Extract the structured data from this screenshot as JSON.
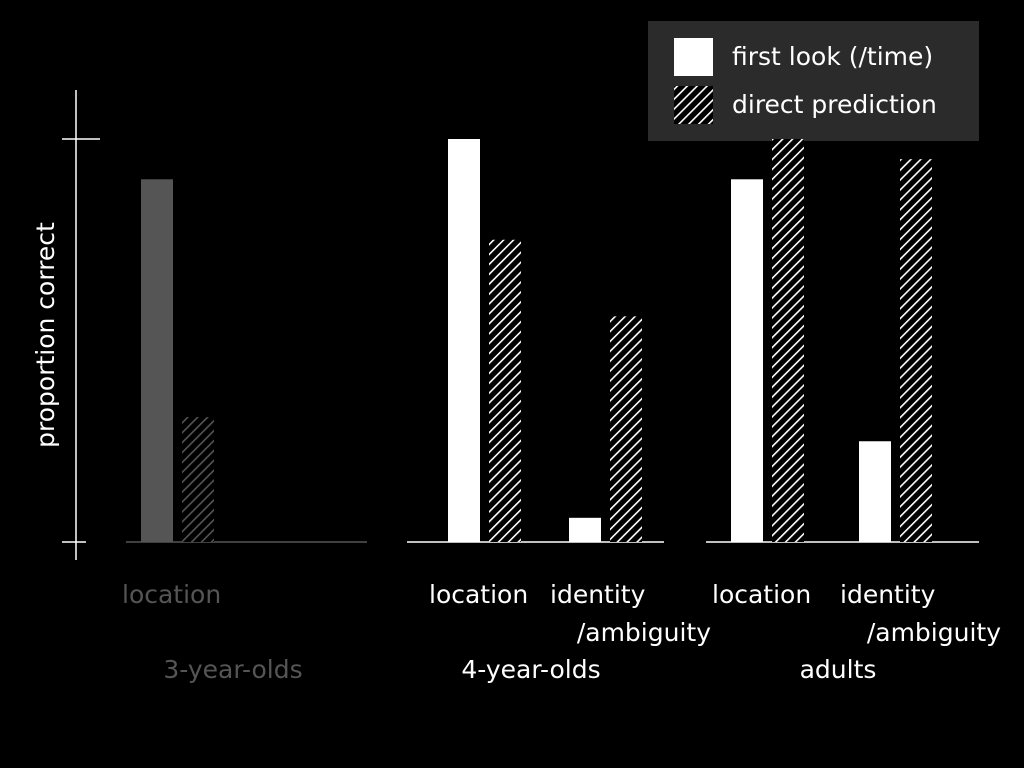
{
  "chart_data": {
    "type": "bar",
    "ylabel": "proportion correct",
    "ylim": [
      0,
      1
    ],
    "grid": false,
    "legend_position": "top-right",
    "colors": {
      "background": "#000000",
      "active": "#ffffff",
      "dimmed": "#555555",
      "legend_box": "#2b2b2b"
    },
    "series": [
      {
        "name": "first look (/time)",
        "pattern": "solid"
      },
      {
        "name": "direct prediction",
        "pattern": "hatched"
      }
    ],
    "groups": [
      {
        "label": "3-year-olds",
        "dimmed": true,
        "conditions": [
          {
            "label": "location",
            "label2": "",
            "values": [
              0.9,
              0.31
            ]
          }
        ]
      },
      {
        "label": "4-year-olds",
        "dimmed": false,
        "conditions": [
          {
            "label": "location",
            "label2": "",
            "values": [
              1.0,
              0.75
            ]
          },
          {
            "label": "identity",
            "label2": "/ambiguity",
            "values": [
              0.06,
              0.56
            ]
          }
        ]
      },
      {
        "label": "adults",
        "dimmed": false,
        "conditions": [
          {
            "label": "location",
            "label2": "",
            "values": [
              0.9,
              1.0
            ]
          },
          {
            "label": "identity",
            "label2": "/ambiguity",
            "values": [
              0.25,
              0.95
            ]
          }
        ]
      }
    ]
  }
}
